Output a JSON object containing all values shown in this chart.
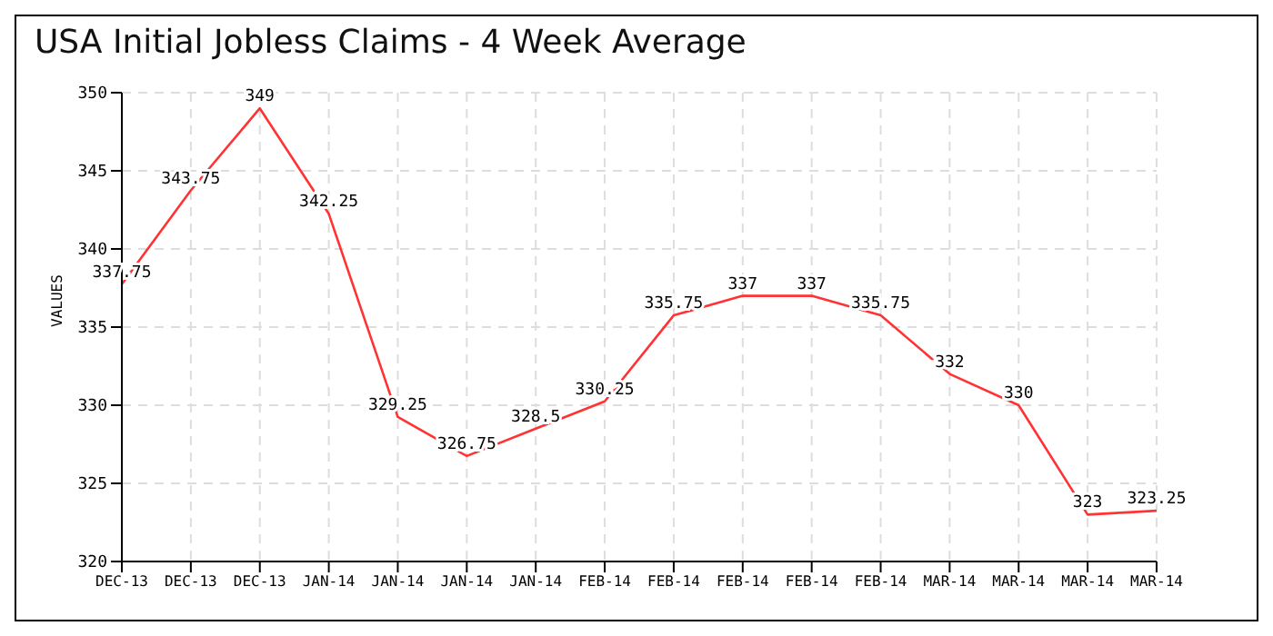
{
  "chart_data": {
    "type": "line",
    "title": "USA Initial Jobless Claims - 4 Week Average",
    "ylabel": "VALUES",
    "categories": [
      "DEC-13",
      "DEC-13",
      "DEC-13",
      "JAN-14",
      "JAN-14",
      "JAN-14",
      "JAN-14",
      "FEB-14",
      "FEB-14",
      "FEB-14",
      "FEB-14",
      "FEB-14",
      "MAR-14",
      "MAR-14",
      "MAR-14",
      "MAR-14"
    ],
    "series": [
      {
        "color": "#ff3333",
        "values": [
          337.75,
          343.75,
          349,
          342.25,
          329.25,
          326.75,
          328.5,
          330.25,
          335.75,
          337,
          337,
          335.75,
          332,
          330,
          323,
          323.25
        ]
      }
    ],
    "ylim": [
      320,
      350
    ],
    "yticks": [
      320,
      325,
      330,
      335,
      340,
      345,
      350
    ],
    "grid": true,
    "data_labels": true,
    "marker": "none",
    "line_style": "solid"
  }
}
